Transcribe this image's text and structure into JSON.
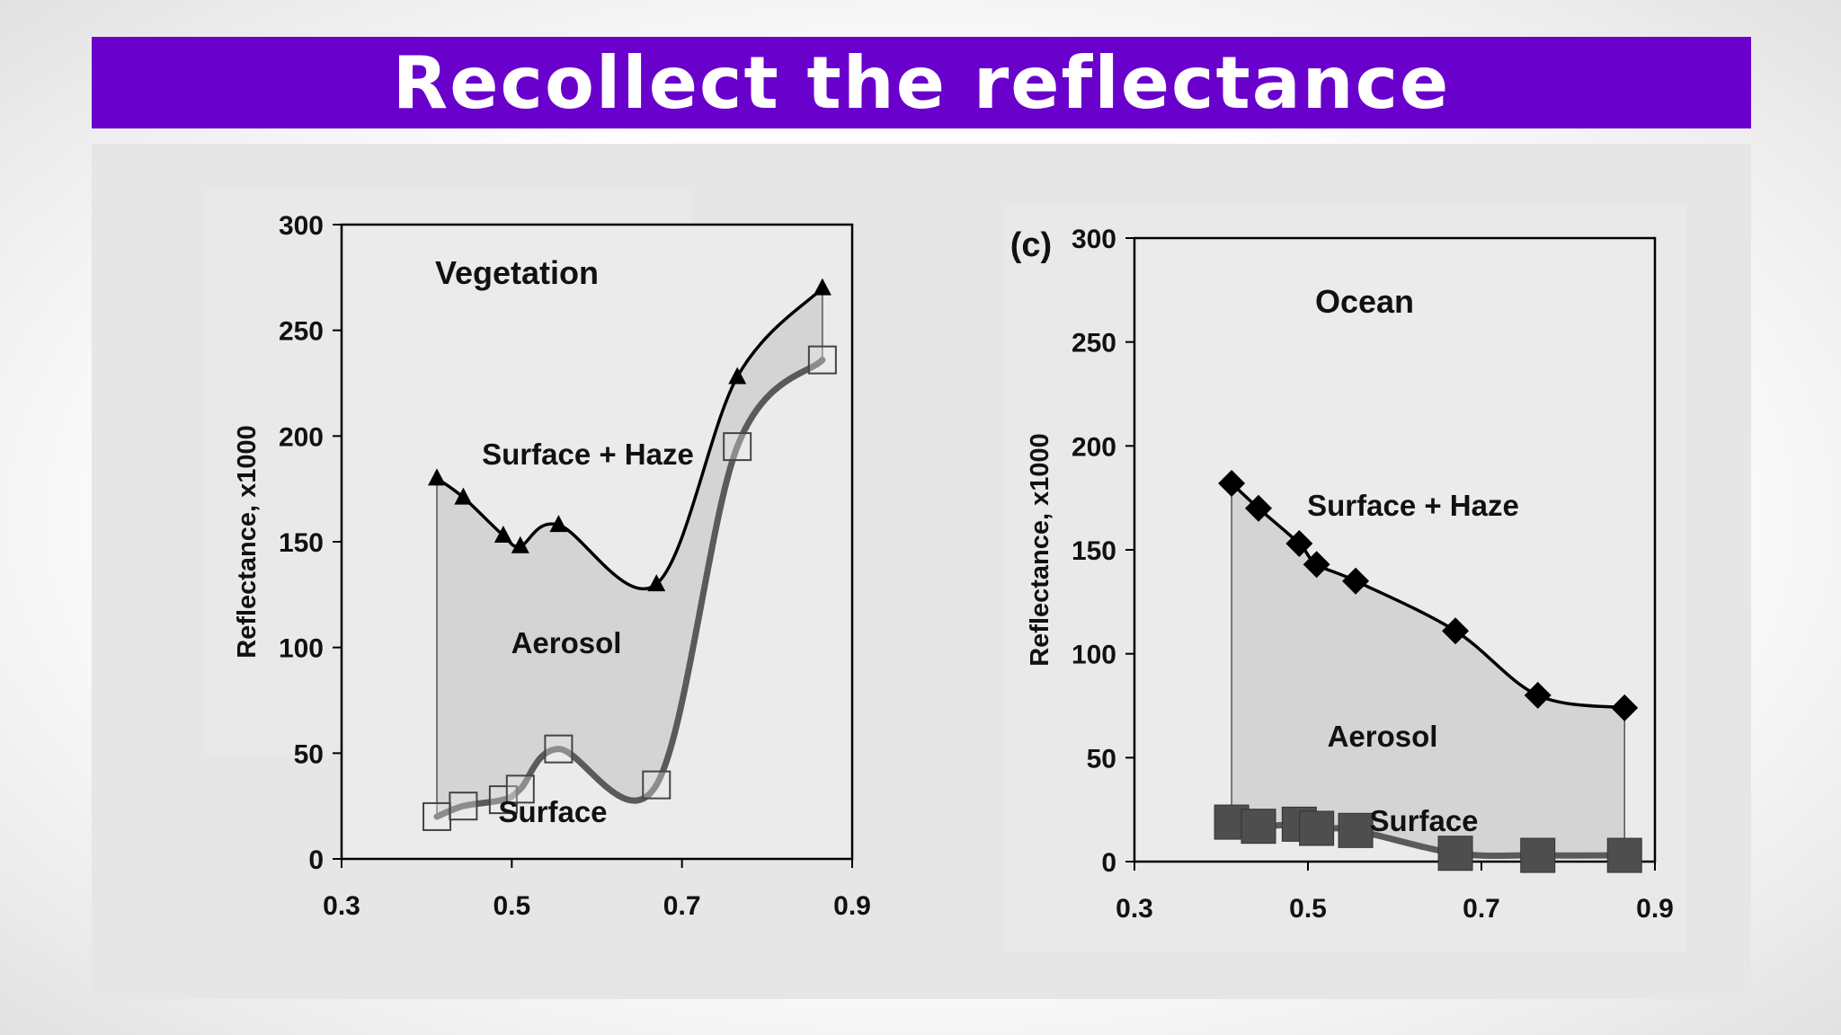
{
  "page": {
    "title": "Recollect the reflectance"
  },
  "chart_data": [
    {
      "type": "line",
      "title": "",
      "xlabel": "",
      "ylabel": "Reflectance, x1000",
      "xlim": [
        0.3,
        0.9
      ],
      "ylim": [
        0,
        300
      ],
      "xticks": [
        "0.3",
        "0.5",
        "0.7",
        "0.9"
      ],
      "yticks": [
        "0",
        "50",
        "100",
        "150",
        "200",
        "250",
        "300"
      ],
      "annotations": {
        "panel": "Vegetation",
        "upper": "Surface + Haze",
        "middle": "Aerosol",
        "lower": "Surface"
      },
      "series": [
        {
          "name": "Surface + Haze",
          "marker": "triangle",
          "x": [
            0.412,
            0.443,
            0.49,
            0.51,
            0.555,
            0.67,
            0.765,
            0.865
          ],
          "values": [
            180,
            171,
            153,
            148,
            158,
            130,
            228,
            270
          ]
        },
        {
          "name": "Surface",
          "marker": "open-square",
          "x": [
            0.412,
            0.443,
            0.49,
            0.51,
            0.555,
            0.67,
            0.765,
            0.865
          ],
          "values": [
            20,
            25,
            28,
            33,
            52,
            35,
            195,
            236
          ]
        }
      ]
    },
    {
      "type": "line",
      "title": "",
      "xlabel": "",
      "ylabel": "Reflectance, x1000",
      "xlim": [
        0.3,
        0.9
      ],
      "ylim": [
        0,
        300
      ],
      "xticks": [
        "0.3",
        "0.5",
        "0.7",
        "0.9"
      ],
      "yticks": [
        "0",
        "50",
        "100",
        "150",
        "200",
        "250",
        "300"
      ],
      "annotations": {
        "tag": "(c)",
        "panel": "Ocean",
        "upper": "Surface + Haze",
        "middle": "Aerosol",
        "lower": "Surface"
      },
      "series": [
        {
          "name": "Surface + Haze",
          "marker": "diamond",
          "x": [
            0.412,
            0.443,
            0.49,
            0.51,
            0.555,
            0.67,
            0.765,
            0.865
          ],
          "values": [
            182,
            170,
            153,
            143,
            135,
            111,
            80,
            74
          ]
        },
        {
          "name": "Surface",
          "marker": "filled-square",
          "x": [
            0.412,
            0.443,
            0.49,
            0.51,
            0.555,
            0.67,
            0.765,
            0.865
          ],
          "values": [
            19,
            17,
            18,
            16,
            15,
            4,
            3,
            3
          ]
        }
      ]
    }
  ],
  "colors": {
    "title_bar": "#6a00cc",
    "title_text": "#ffffff",
    "aerosol_fill": "#d4d4d4",
    "surface_line": "#5a5a5a",
    "haze_line": "#000000"
  }
}
